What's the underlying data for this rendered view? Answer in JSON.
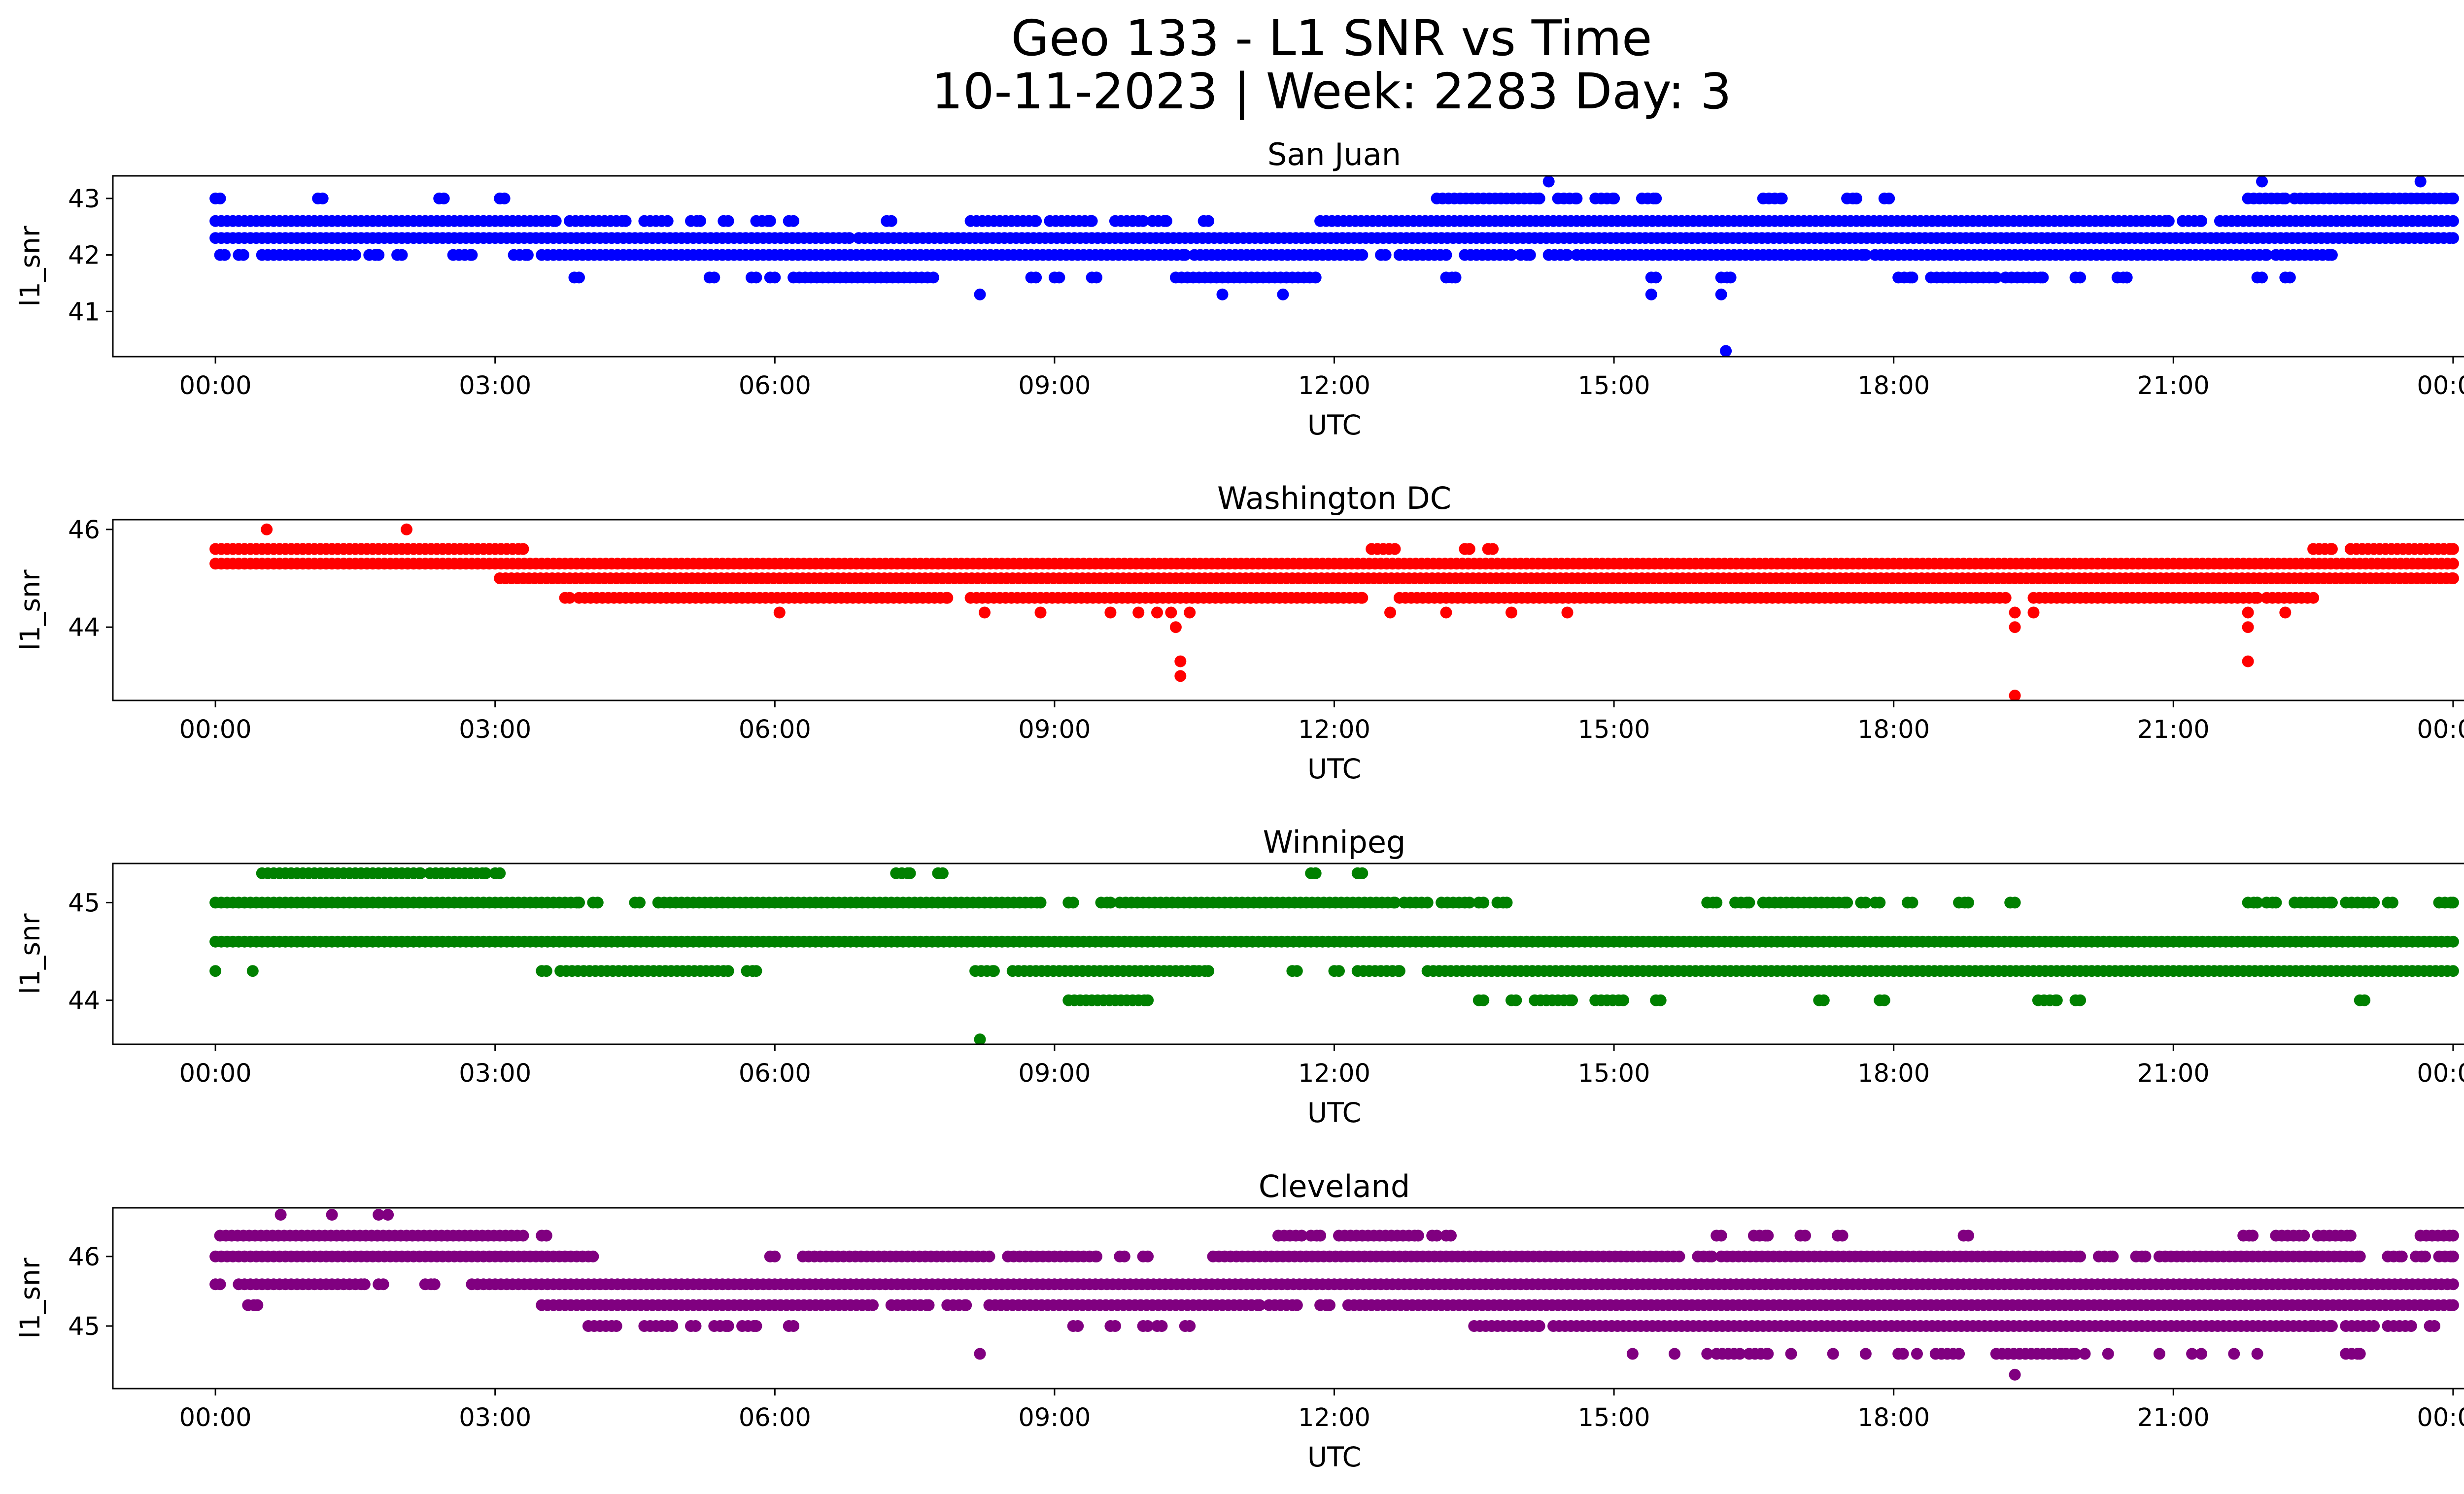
{
  "figure": {
    "title_line1": "Geo 133 - L1 SNR vs Time",
    "title_line2": "10-11-2023 | Week: 2283 Day: 3"
  },
  "chart_data": [
    {
      "type": "scatter",
      "title": "San Juan",
      "xlabel": "UTC",
      "ylabel": "l1_snr",
      "color": "#0000ff",
      "x_ticks": [
        "00:00",
        "03:00",
        "06:00",
        "09:00",
        "12:00",
        "15:00",
        "18:00",
        "21:00",
        "00:00"
      ],
      "xlim_hours": [
        -1.1,
        25.1
      ],
      "y_ticks": [
        41,
        42,
        43
      ],
      "ylim": [
        40.2,
        43.4
      ],
      "series": [
        {
          "y": 43.0,
          "ranges": [
            [
              0.0,
              0.05
            ],
            [
              1.1,
              1.15
            ],
            [
              2.4,
              2.45
            ],
            [
              3.05,
              3.1
            ],
            [
              13.1,
              14.2
            ],
            [
              14.4,
              14.6
            ],
            [
              14.8,
              15.0
            ],
            [
              15.3,
              15.45
            ],
            [
              16.6,
              16.8
            ],
            [
              17.5,
              17.6
            ],
            [
              17.9,
              17.95
            ],
            [
              21.8,
              22.2
            ],
            [
              22.3,
              24.0
            ]
          ]
        },
        {
          "y": 42.6,
          "ranges": [
            [
              0.0,
              3.65
            ],
            [
              3.8,
              4.4
            ],
            [
              4.6,
              4.85
            ],
            [
              5.1,
              5.2
            ],
            [
              5.45,
              5.5
            ],
            [
              5.8,
              5.95
            ],
            [
              6.15,
              6.2
            ],
            [
              7.2,
              7.25
            ],
            [
              8.1,
              8.8
            ],
            [
              8.95,
              9.4
            ],
            [
              9.65,
              9.95
            ],
            [
              10.05,
              10.2
            ],
            [
              10.6,
              10.65
            ],
            [
              11.85,
              20.95
            ],
            [
              21.1,
              21.3
            ],
            [
              21.5,
              24.0
            ]
          ]
        },
        {
          "y": 42.3,
          "ranges": [
            [
              0.0,
              6.8
            ],
            [
              6.9,
              24.0
            ]
          ]
        },
        {
          "y": 42.0,
          "ranges": [
            [
              0.05,
              0.1
            ],
            [
              0.25,
              0.3
            ],
            [
              0.5,
              1.5
            ],
            [
              1.65,
              1.75
            ],
            [
              1.95,
              2.0
            ],
            [
              2.55,
              2.75
            ],
            [
              3.2,
              3.35
            ],
            [
              3.5,
              10.4
            ],
            [
              10.5,
              12.3
            ],
            [
              12.5,
              12.55
            ],
            [
              12.7,
              13.2
            ],
            [
              13.4,
              13.9
            ],
            [
              14.0,
              14.1
            ],
            [
              14.3,
              14.5
            ],
            [
              14.6,
              17.7
            ],
            [
              17.8,
              22.0
            ],
            [
              22.1,
              22.7
            ]
          ]
        },
        {
          "y": 41.6,
          "ranges": [
            [
              3.85,
              3.9
            ],
            [
              5.3,
              5.35
            ],
            [
              5.75,
              5.8
            ],
            [
              5.95,
              6.0
            ],
            [
              6.2,
              7.7
            ],
            [
              8.75,
              8.8
            ],
            [
              9.0,
              9.05
            ],
            [
              9.4,
              9.45
            ],
            [
              10.3,
              11.8
            ],
            [
              13.2,
              13.3
            ],
            [
              15.4,
              15.45
            ],
            [
              16.15,
              16.25
            ],
            [
              18.05,
              18.2
            ],
            [
              18.4,
              19.1
            ],
            [
              19.2,
              19.6
            ],
            [
              19.95,
              20.0
            ],
            [
              20.4,
              20.5
            ],
            [
              21.9,
              21.95
            ],
            [
              22.2,
              22.25
            ]
          ]
        },
        {
          "y": 41.3,
          "points": [
            8.2,
            10.8,
            11.45,
            15.4,
            16.15
          ]
        },
        {
          "y": 43.3,
          "points": [
            14.3,
            21.95,
            23.65
          ]
        },
        {
          "y": 40.3,
          "points": [
            16.2
          ]
        }
      ]
    },
    {
      "type": "scatter",
      "title": "Washington DC",
      "xlabel": "UTC",
      "ylabel": "l1_snr",
      "color": "#ff0000",
      "x_ticks": [
        "00:00",
        "03:00",
        "06:00",
        "09:00",
        "12:00",
        "15:00",
        "18:00",
        "21:00",
        "00:00"
      ],
      "xlim_hours": [
        -1.1,
        25.1
      ],
      "y_ticks": [
        44,
        46
      ],
      "ylim": [
        42.5,
        46.2
      ],
      "series": [
        {
          "y": 46.0,
          "points": [
            0.55,
            2.05
          ]
        },
        {
          "y": 45.6,
          "ranges": [
            [
              0.0,
              3.3
            ],
            [
              12.4,
              12.65
            ],
            [
              13.4,
              13.45
            ],
            [
              13.65,
              13.7
            ],
            [
              22.5,
              22.7
            ],
            [
              22.9,
              24.0
            ]
          ]
        },
        {
          "y": 45.3,
          "ranges": [
            [
              0.0,
              24.0
            ]
          ]
        },
        {
          "y": 45.0,
          "ranges": [
            [
              3.05,
              24.0
            ]
          ]
        },
        {
          "y": 44.6,
          "ranges": [
            [
              3.75,
              3.8
            ],
            [
              3.9,
              7.85
            ],
            [
              8.1,
              12.3
            ],
            [
              12.7,
              19.2
            ],
            [
              19.5,
              21.9
            ],
            [
              22.0,
              22.5
            ]
          ]
        },
        {
          "y": 44.3,
          "points": [
            6.05,
            8.25,
            8.85,
            9.6,
            9.9,
            10.1,
            10.25,
            10.45,
            12.6,
            13.2,
            13.9,
            14.5,
            19.3,
            19.5,
            21.8,
            22.2
          ]
        },
        {
          "y": 44.0,
          "points": [
            10.3,
            19.3,
            21.8
          ]
        },
        {
          "y": 43.3,
          "points": [
            10.35,
            21.8
          ]
        },
        {
          "y": 43.0,
          "points": [
            10.35
          ]
        },
        {
          "y": 42.6,
          "points": [
            19.3
          ]
        }
      ]
    },
    {
      "type": "scatter",
      "title": "Winnipeg",
      "xlabel": "UTC",
      "ylabel": "l1_snr",
      "color": "#008000",
      "x_ticks": [
        "00:00",
        "03:00",
        "06:00",
        "09:00",
        "12:00",
        "15:00",
        "18:00",
        "21:00",
        "00:00"
      ],
      "xlim_hours": [
        -1.1,
        25.1
      ],
      "y_ticks": [
        44,
        45
      ],
      "ylim": [
        43.55,
        45.4
      ],
      "series": [
        {
          "y": 45.3,
          "ranges": [
            [
              0.5,
              2.2
            ],
            [
              2.3,
              2.9
            ],
            [
              3.0,
              3.05
            ],
            [
              7.3,
              7.45
            ],
            [
              7.75,
              7.8
            ],
            [
              11.75,
              11.8
            ],
            [
              12.25,
              12.3
            ]
          ]
        },
        {
          "y": 45.0,
          "ranges": [
            [
              0.0,
              3.9
            ],
            [
              4.05,
              4.1
            ],
            [
              4.5,
              4.55
            ],
            [
              4.75,
              8.85
            ],
            [
              9.15,
              9.2
            ],
            [
              9.5,
              9.6
            ],
            [
              9.7,
              12.65
            ],
            [
              12.75,
              13.0
            ],
            [
              13.15,
              13.45
            ],
            [
              13.55,
              13.6
            ],
            [
              13.75,
              13.85
            ],
            [
              16.0,
              16.1
            ],
            [
              16.3,
              16.45
            ],
            [
              16.6,
              17.5
            ],
            [
              17.65,
              17.7
            ],
            [
              17.8,
              17.85
            ],
            [
              18.15,
              18.2
            ],
            [
              18.7,
              18.8
            ],
            [
              19.25,
              19.3
            ],
            [
              21.8,
              21.9
            ],
            [
              22.0,
              22.1
            ],
            [
              22.3,
              22.7
            ],
            [
              22.85,
              23.15
            ],
            [
              23.3,
              23.35
            ],
            [
              23.85,
              24.0
            ]
          ]
        },
        {
          "y": 44.6,
          "ranges": [
            [
              0.0,
              24.0
            ]
          ]
        },
        {
          "y": 44.3,
          "points": [
            0.0,
            0.4
          ],
          "ranges": [
            [
              3.5,
              3.55
            ],
            [
              3.7,
              5.5
            ],
            [
              5.7,
              5.8
            ],
            [
              8.15,
              8.35
            ],
            [
              8.55,
              10.5
            ],
            [
              10.55,
              10.65
            ],
            [
              11.55,
              11.6
            ],
            [
              12.0,
              12.05
            ],
            [
              12.25,
              12.7
            ],
            [
              13.0,
              24.0
            ]
          ]
        },
        {
          "y": 44.0,
          "ranges": [
            [
              9.15,
              10.0
            ],
            [
              13.55,
              13.6
            ],
            [
              13.9,
              13.95
            ],
            [
              14.15,
              14.55
            ],
            [
              14.8,
              15.1
            ],
            [
              15.45,
              15.5
            ],
            [
              17.2,
              17.25
            ],
            [
              17.85,
              17.9
            ],
            [
              19.55,
              19.75
            ],
            [
              19.95,
              20.0
            ],
            [
              23.0,
              23.05
            ]
          ]
        },
        {
          "y": 43.6,
          "points": [
            8.2
          ]
        }
      ]
    },
    {
      "type": "scatter",
      "title": "Cleveland",
      "xlabel": "UTC",
      "ylabel": "l1_snr",
      "color": "#800080",
      "x_ticks": [
        "00:00",
        "03:00",
        "06:00",
        "09:00",
        "12:00",
        "15:00",
        "18:00",
        "21:00",
        "00:00"
      ],
      "xlim_hours": [
        -1.1,
        25.1
      ],
      "y_ticks": [
        45,
        46
      ],
      "ylim": [
        44.1,
        46.7
      ],
      "series": [
        {
          "y": 46.6,
          "points": [
            0.7,
            1.25,
            1.75,
            1.85
          ]
        },
        {
          "y": 46.3,
          "ranges": [
            [
              0.05,
              3.3
            ],
            [
              3.5,
              3.55
            ],
            [
              11.4,
              11.65
            ],
            [
              11.75,
              11.85
            ],
            [
              12.05,
              12.9
            ],
            [
              13.05,
              13.1
            ],
            [
              13.2,
              13.25
            ],
            [
              16.1,
              16.15
            ],
            [
              16.5,
              16.65
            ],
            [
              17.0,
              17.05
            ],
            [
              17.4,
              17.45
            ],
            [
              18.75,
              18.8
            ],
            [
              21.75,
              21.85
            ],
            [
              22.1,
              22.4
            ],
            [
              22.55,
              22.9
            ],
            [
              23.65,
              24.0
            ]
          ]
        },
        {
          "y": 46.0,
          "ranges": [
            [
              0.0,
              4.05
            ],
            [
              5.95,
              6.0
            ],
            [
              6.3,
              8.3
            ],
            [
              8.5,
              9.45
            ],
            [
              9.7,
              9.75
            ],
            [
              9.95,
              10.0
            ],
            [
              10.7,
              15.7
            ],
            [
              15.9,
              16.05
            ],
            [
              16.15,
              20.0
            ],
            [
              20.2,
              20.35
            ],
            [
              20.6,
              20.7
            ],
            [
              20.85,
              23.0
            ],
            [
              23.3,
              23.45
            ],
            [
              23.6,
              23.7
            ],
            [
              23.85,
              24.0
            ]
          ]
        },
        {
          "y": 45.6,
          "ranges": [
            [
              0.0,
              0.05
            ],
            [
              0.25,
              1.6
            ],
            [
              1.75,
              1.8
            ],
            [
              2.25,
              2.35
            ],
            [
              2.75,
              24.0
            ]
          ]
        },
        {
          "y": 45.3,
          "ranges": [
            [
              0.35,
              0.45
            ],
            [
              3.5,
              7.05
            ],
            [
              7.25,
              7.65
            ],
            [
              7.85,
              8.05
            ],
            [
              8.3,
              11.2
            ],
            [
              11.3,
              11.6
            ],
            [
              11.85,
              11.95
            ],
            [
              12.15,
              24.0
            ]
          ]
        },
        {
          "y": 45.0,
          "ranges": [
            [
              4.0,
              4.3
            ],
            [
              4.6,
              4.9
            ],
            [
              5.1,
              5.15
            ],
            [
              5.35,
              5.5
            ],
            [
              5.65,
              5.8
            ],
            [
              6.15,
              6.2
            ],
            [
              9.2,
              9.25
            ],
            [
              9.6,
              9.65
            ],
            [
              9.95,
              10.0
            ],
            [
              10.1,
              10.15
            ],
            [
              10.4,
              10.45
            ],
            [
              13.5,
              14.2
            ],
            [
              14.35,
              22.5
            ],
            [
              22.55,
              22.7
            ],
            [
              22.85,
              23.15
            ],
            [
              23.3,
              23.55
            ],
            [
              23.75,
              23.8
            ]
          ]
        },
        {
          "y": 44.6,
          "points": [
            8.2,
            15.2,
            15.65,
            16.0,
            16.9,
            17.35,
            17.7,
            18.05,
            18.1,
            18.25,
            19.8,
            20.05,
            20.3,
            20.85,
            21.2,
            21.3,
            21.65,
            21.9
          ],
          "ranges": [
            [
              16.1,
              16.35
            ],
            [
              16.45,
              16.65
            ],
            [
              18.45,
              18.7
            ],
            [
              19.1,
              19.95
            ],
            [
              22.85,
              23.0
            ]
          ]
        },
        {
          "y": 44.3,
          "points": [
            19.3
          ]
        }
      ]
    }
  ]
}
